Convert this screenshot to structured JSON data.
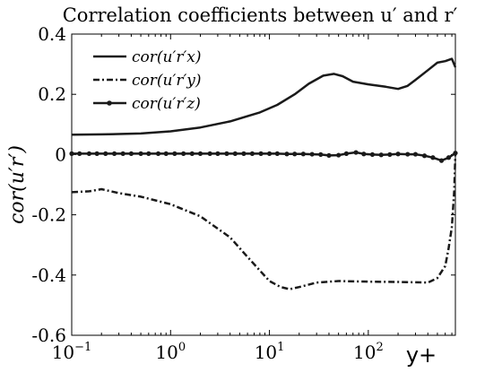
{
  "chart_data": {
    "type": "line",
    "title": "Correlation coefficients between u′ and r′",
    "xlabel": "y+",
    "ylabel": "cor(u′r′)",
    "xscale": "log",
    "xlim": [
      0.1,
      760
    ],
    "ylim": [
      -0.6,
      0.4
    ],
    "x_tick_labels": [
      "10−1",
      "100",
      "101",
      "102"
    ],
    "y_tick_labels": [
      "-0.6",
      "-0.4",
      "-0.2",
      "0",
      "0.2",
      "0.4"
    ],
    "y_ticks": [
      -0.6,
      -0.4,
      -0.2,
      0,
      0.2,
      0.4
    ],
    "grid": false,
    "legend_position": "top-left",
    "series": [
      {
        "name": "cor(u′r′x)",
        "style": "solid",
        "color": "#1a1a1a",
        "x": [
          0.1,
          0.2,
          0.5,
          1,
          2,
          4,
          8,
          12,
          18,
          25,
          35,
          45,
          55,
          70,
          100,
          150,
          200,
          250,
          300,
          400,
          500,
          600,
          700,
          760
        ],
        "y": [
          0.066,
          0.067,
          0.07,
          0.077,
          0.09,
          0.11,
          0.14,
          0.165,
          0.2,
          0.235,
          0.262,
          0.268,
          0.26,
          0.242,
          0.233,
          0.225,
          0.218,
          0.228,
          0.248,
          0.28,
          0.305,
          0.31,
          0.318,
          0.29
        ]
      },
      {
        "name": "cor(u′r′y)",
        "style": "dashdot",
        "color": "#1a1a1a",
        "x": [
          0.1,
          0.15,
          0.2,
          0.3,
          0.5,
          1,
          2,
          4,
          6,
          8,
          10,
          13,
          16,
          20,
          30,
          50,
          100,
          200,
          400,
          500,
          600,
          650,
          700,
          740,
          760
        ],
        "y": [
          -0.125,
          -0.122,
          -0.115,
          -0.128,
          -0.14,
          -0.165,
          -0.205,
          -0.275,
          -0.34,
          -0.385,
          -0.42,
          -0.44,
          -0.447,
          -0.44,
          -0.425,
          -0.42,
          -0.422,
          -0.423,
          -0.425,
          -0.41,
          -0.37,
          -0.31,
          -0.24,
          -0.12,
          0.005
        ]
      },
      {
        "name": "cor(u′r′z)",
        "style": "marker",
        "color": "#1a1a1a",
        "x": [
          0.1,
          0.12,
          0.15,
          0.18,
          0.22,
          0.27,
          0.33,
          0.4,
          0.5,
          0.6,
          0.75,
          0.9,
          1.1,
          1.35,
          1.65,
          2,
          2.5,
          3,
          3.7,
          4.5,
          5.5,
          6.7,
          8.2,
          10,
          12,
          15,
          18,
          22,
          27,
          33,
          40,
          50,
          60,
          75,
          90,
          110,
          135,
          165,
          200,
          250,
          300,
          370,
          450,
          550,
          650,
          760
        ],
        "y": [
          0.003,
          0.003,
          0.003,
          0.003,
          0.003,
          0.003,
          0.003,
          0.003,
          0.003,
          0.003,
          0.003,
          0.003,
          0.003,
          0.003,
          0.003,
          0.003,
          0.003,
          0.003,
          0.003,
          0.003,
          0.003,
          0.003,
          0.003,
          0.003,
          0.003,
          0.002,
          0.002,
          0.002,
          0.001,
          0.0,
          -0.003,
          -0.002,
          0.003,
          0.007,
          0.002,
          0.0,
          -0.001,
          0.0,
          0.002,
          0.001,
          0.001,
          -0.004,
          -0.01,
          -0.02,
          -0.01,
          0.005
        ]
      }
    ]
  }
}
